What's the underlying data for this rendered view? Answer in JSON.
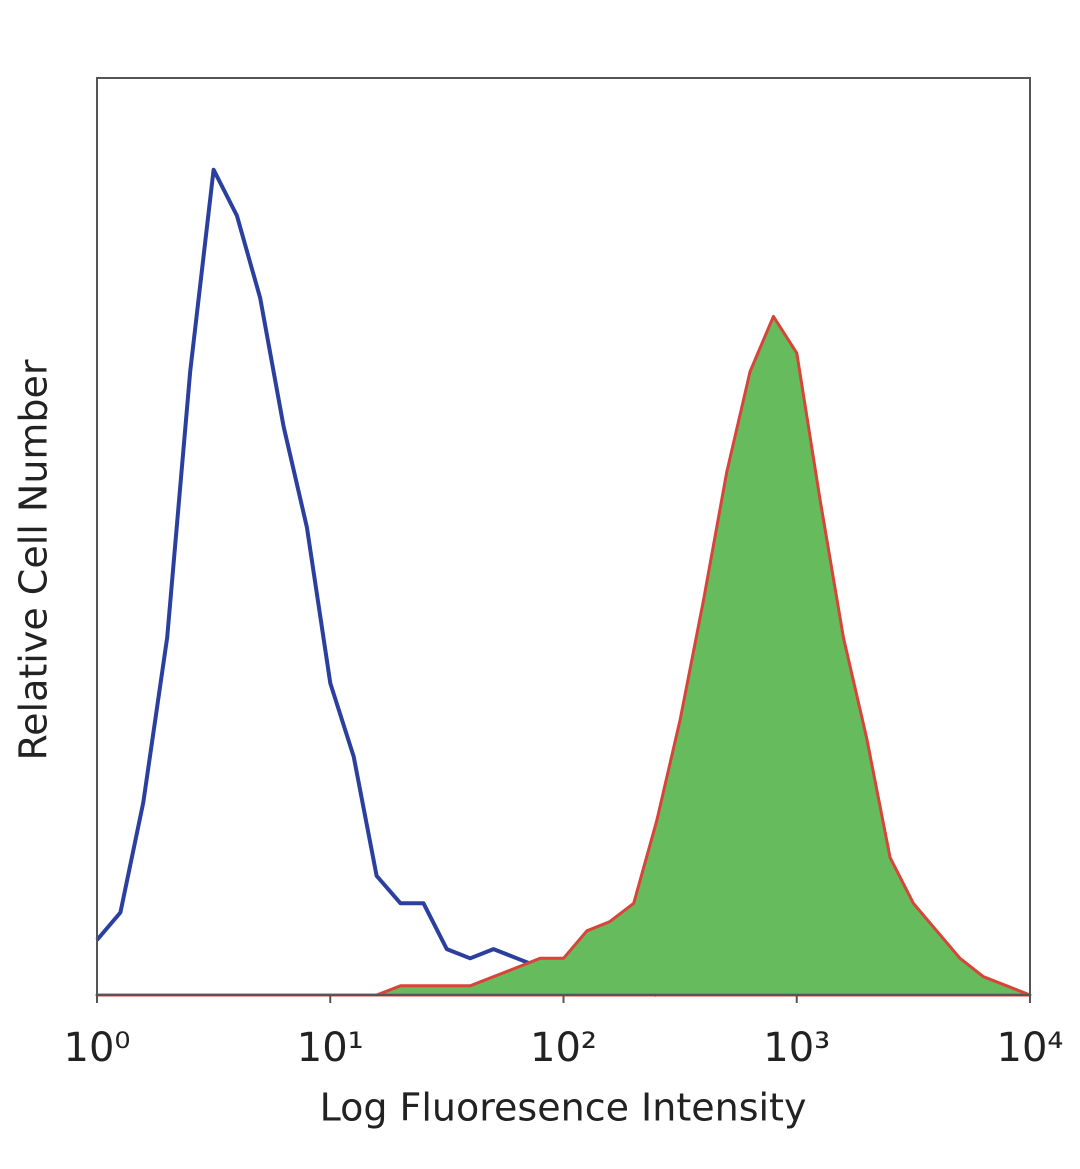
{
  "chart_data": {
    "type": "histogram-line",
    "x_label": "Log Fluoresence Intensity",
    "y_label": "Relative Cell Number",
    "xscale": "log",
    "xlim": [
      1,
      10000
    ],
    "ylim": [
      0,
      100
    ],
    "xticks": [
      {
        "value": 1,
        "label": "10⁰"
      },
      {
        "value": 10,
        "label": "10¹"
      },
      {
        "value": 100,
        "label": "10²"
      },
      {
        "value": 1000,
        "label": "10³"
      },
      {
        "value": 10000,
        "label": "10⁴"
      }
    ],
    "x": [
      1,
      1.26,
      1.58,
      2,
      2.51,
      3.16,
      3.98,
      5.01,
      6.31,
      7.94,
      10,
      12.6,
      15.8,
      20,
      25.1,
      31.6,
      39.8,
      50.1,
      63.1,
      79.4,
      100,
      126,
      158,
      200,
      251,
      316,
      398,
      501,
      631,
      794,
      1000,
      1259,
      1585,
      1995,
      2512,
      3162,
      3981,
      5012,
      6310,
      7943,
      10000
    ],
    "series": [
      {
        "color": "#2b3f9e",
        "fill": false,
        "values": [
          6,
          9,
          21,
          39,
          68,
          90,
          85,
          76,
          62,
          51,
          34,
          26,
          13,
          10,
          10,
          5,
          4,
          5,
          4,
          3,
          3,
          2,
          1,
          1,
          0,
          null,
          null,
          null,
          null,
          null,
          null,
          null,
          null,
          null,
          null,
          null,
          null,
          null,
          null,
          null,
          null
        ]
      },
      {
        "color": "#d9443a",
        "fill_color": "#66bb5c",
        "fill": true,
        "values": [
          0,
          0,
          0,
          0,
          0,
          0,
          0,
          0,
          0,
          0,
          0,
          0,
          0,
          1,
          1,
          1,
          1,
          2,
          3,
          4,
          4,
          7,
          8,
          10,
          19,
          30,
          43,
          57,
          68,
          74,
          70,
          54,
          39,
          28,
          15,
          10,
          7,
          4,
          2,
          1,
          0
        ]
      }
    ]
  }
}
